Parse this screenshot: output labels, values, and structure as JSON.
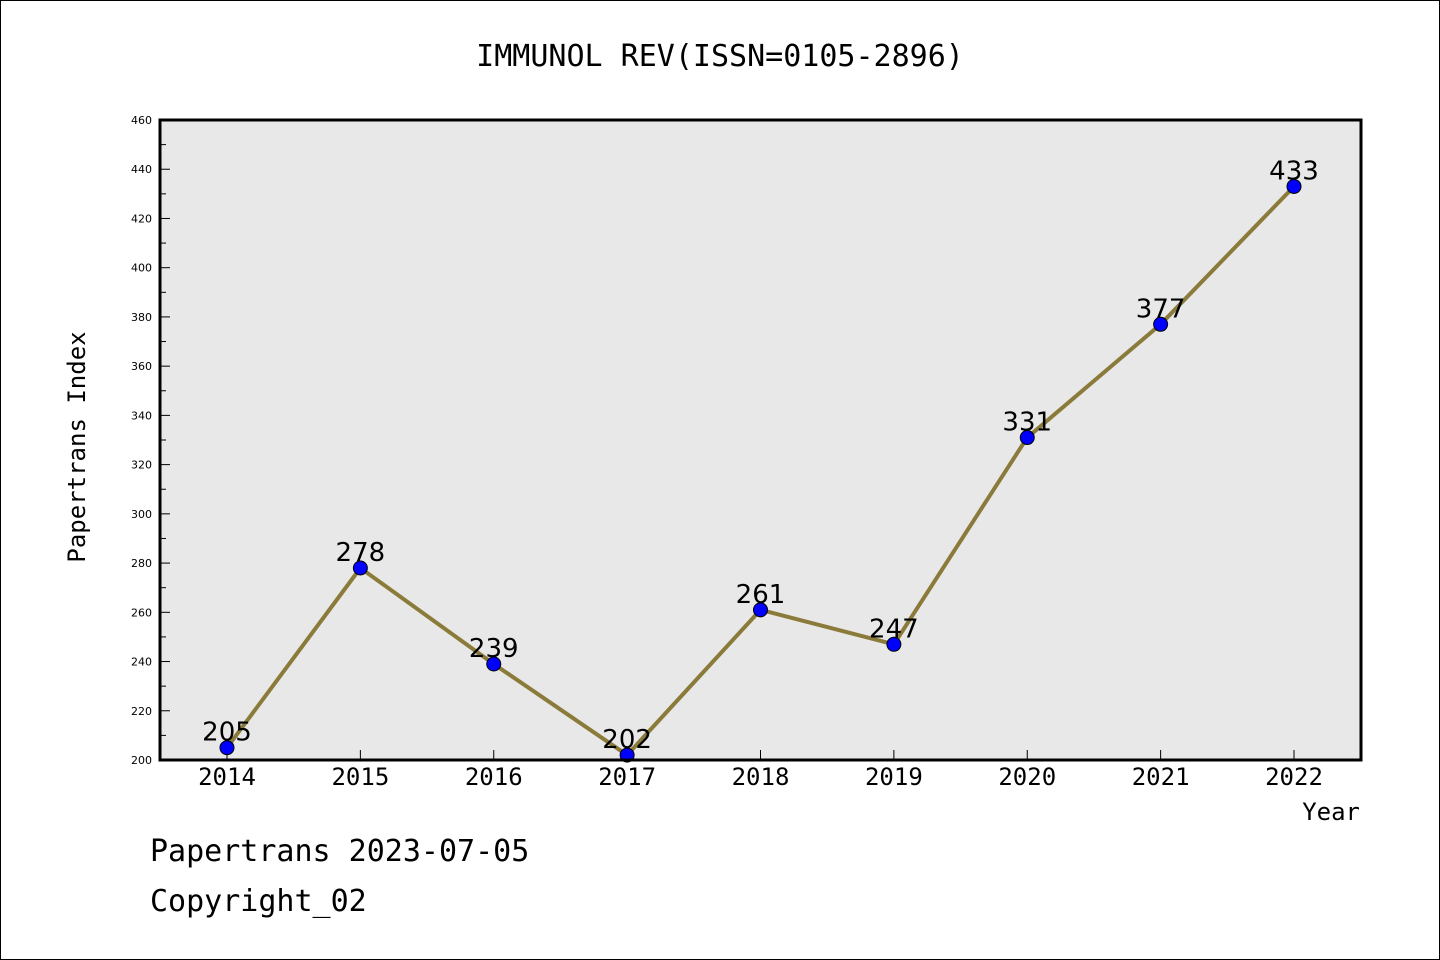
{
  "chart_data": {
    "type": "line",
    "title": "IMMUNOL REV(ISSN=0105-2896)",
    "xlabel": "Year",
    "ylabel": "Papertrans Index",
    "x": [
      "2014",
      "2015",
      "2016",
      "2017",
      "2018",
      "2019",
      "2020",
      "2021",
      "2022"
    ],
    "values": [
      205,
      278,
      239,
      202,
      261,
      247,
      331,
      377,
      433
    ],
    "ylim": [
      200,
      460
    ],
    "yticks": [
      200,
      220,
      240,
      260,
      280,
      300,
      320,
      340,
      360,
      380,
      400,
      420,
      440,
      460
    ],
    "grid": false,
    "line_color": "#8b7b3a",
    "marker_color": "#0000ff",
    "plot_background": "#e8e8e8"
  },
  "footer": {
    "line1": "Papertrans 2023-07-05",
    "line2": "Copyright_02"
  }
}
